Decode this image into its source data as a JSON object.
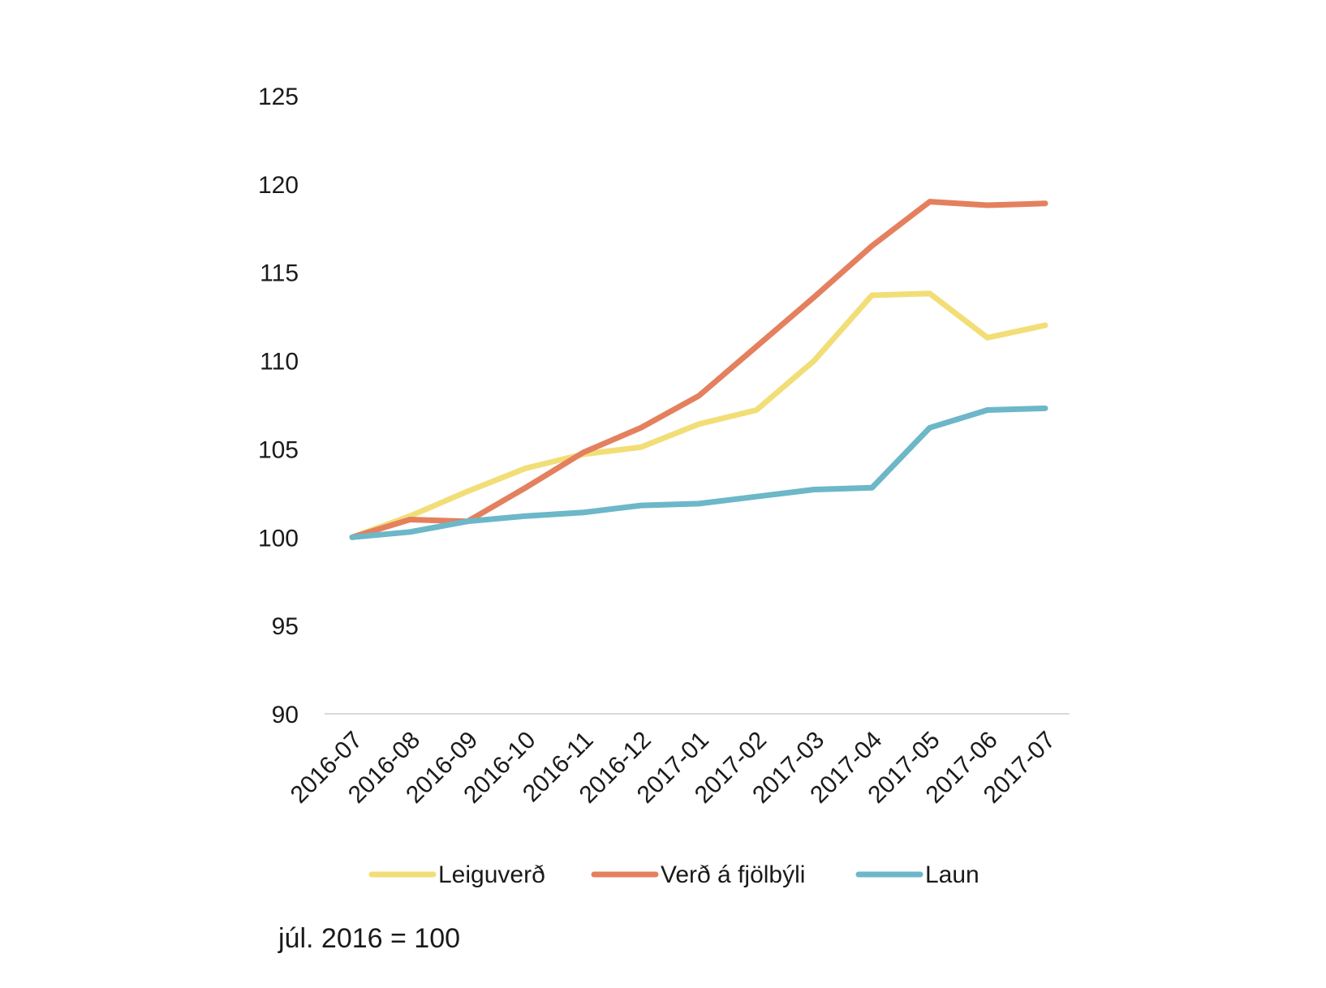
{
  "chart_data": {
    "type": "line",
    "categories": [
      "2016-07",
      "2016-08",
      "2016-09",
      "2016-10",
      "2016-11",
      "2016-12",
      "2017-01",
      "2017-02",
      "2017-03",
      "2017-04",
      "2017-05",
      "2017-06",
      "2017-07"
    ],
    "series": [
      {
        "name": "Leiguverð",
        "color": "#f2de77",
        "values": [
          100,
          101.2,
          102.6,
          103.9,
          104.7,
          105.1,
          106.4,
          107.2,
          110.0,
          113.7,
          113.8,
          111.3,
          112.0
        ]
      },
      {
        "name": "Verð á fjölbýli",
        "color": "#e4805e",
        "values": [
          100,
          101.0,
          100.9,
          102.8,
          104.8,
          106.2,
          108.0,
          110.8,
          113.6,
          116.5,
          119.0,
          118.8,
          118.9
        ]
      },
      {
        "name": "Laun",
        "color": "#6cb7c8",
        "values": [
          100,
          100.3,
          100.9,
          101.2,
          101.4,
          101.8,
          101.9,
          102.3,
          102.7,
          102.8,
          106.2,
          107.2,
          107.3
        ]
      }
    ],
    "ylim": [
      90,
      125
    ],
    "yticks": [
      90,
      95,
      100,
      105,
      110,
      115,
      120,
      125
    ],
    "grid": false,
    "legend": "bottom",
    "note": "júl. 2016 = 100",
    "axis_color": "#d9d9d9"
  }
}
